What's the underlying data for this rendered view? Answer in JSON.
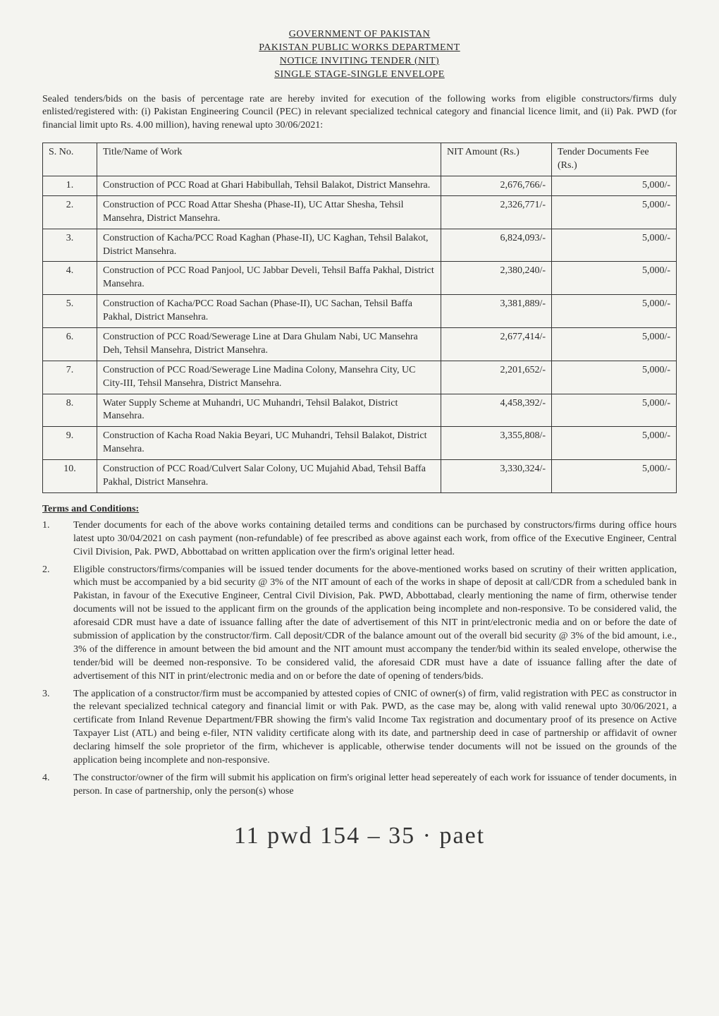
{
  "header": {
    "line1": "GOVERNMENT OF PAKISTAN",
    "line2": "PAKISTAN PUBLIC WORKS DEPARTMENT",
    "line3": "NOTICE INVITING TENDER (NIT)",
    "line4": "SINGLE STAGE-SINGLE ENVELOPE"
  },
  "intro": "Sealed tenders/bids on the basis of percentage rate are hereby invited for execution of the following works from eligible constructors/firms duly enlisted/registered with: (i) Pakistan Engineering Council (PEC) in relevant specialized technical category and financial licence limit, and (ii) Pak. PWD (for financial limit upto Rs. 4.00 million), having renewal upto 30/06/2021:",
  "table": {
    "columns": {
      "sno": "S. No.",
      "title": "Title/Name of Work",
      "amount": "NIT Amount (Rs.)",
      "fee": "Tender Documents Fee (Rs.)"
    },
    "rows": [
      {
        "sno": "1.",
        "title": "Construction of PCC Road at Ghari Habibullah, Tehsil Balakot, District Mansehra.",
        "amount": "2,676,766/-",
        "fee": "5,000/-"
      },
      {
        "sno": "2.",
        "title": "Construction of PCC Road Attar Shesha (Phase-II), UC Attar Shesha, Tehsil Mansehra, District Mansehra.",
        "amount": "2,326,771/-",
        "fee": "5,000/-"
      },
      {
        "sno": "3.",
        "title": "Construction of Kacha/PCC Road Kaghan (Phase-II), UC Kaghan, Tehsil Balakot, District Mansehra.",
        "amount": "6,824,093/-",
        "fee": "5,000/-"
      },
      {
        "sno": "4.",
        "title": "Construction of PCC Road Panjool, UC Jabbar Develi, Tehsil Baffa Pakhal, District Mansehra.",
        "amount": "2,380,240/-",
        "fee": "5,000/-"
      },
      {
        "sno": "5.",
        "title": "Construction of Kacha/PCC Road Sachan (Phase-II), UC Sachan, Tehsil Baffa Pakhal, District Mansehra.",
        "amount": "3,381,889/-",
        "fee": "5,000/-"
      },
      {
        "sno": "6.",
        "title": "Construction of PCC Road/Sewerage Line at Dara Ghulam Nabi, UC Mansehra Deh, Tehsil Mansehra, District Mansehra.",
        "amount": "2,677,414/-",
        "fee": "5,000/-"
      },
      {
        "sno": "7.",
        "title": "Construction of PCC Road/Sewerage Line Madina Colony, Mansehra City, UC City-III, Tehsil Mansehra, District Mansehra.",
        "amount": "2,201,652/-",
        "fee": "5,000/-"
      },
      {
        "sno": "8.",
        "title": "Water Supply Scheme at Muhandri, UC Muhandri, Tehsil Balakot, District Mansehra.",
        "amount": "4,458,392/-",
        "fee": "5,000/-"
      },
      {
        "sno": "9.",
        "title": "Construction of Kacha Road Nakia Beyari, UC Muhandri, Tehsil Balakot, District Mansehra.",
        "amount": "3,355,808/-",
        "fee": "5,000/-"
      },
      {
        "sno": "10.",
        "title": "Construction of PCC Road/Culvert Salar Colony, UC Mujahid Abad, Tehsil Baffa Pakhal, District Mansehra.",
        "amount": "3,330,324/-",
        "fee": "5,000/-"
      }
    ],
    "style": {
      "border_color": "#333333",
      "header_bg": "#ffffff",
      "row_bg": "#ffffff",
      "font_size_pt": 11,
      "col_align": {
        "sno": "center",
        "title": "left",
        "amount": "right",
        "fee": "right"
      }
    }
  },
  "terms": {
    "heading": "Terms and Conditions:",
    "items": [
      {
        "num": "1.",
        "text": "Tender documents for each of the above works containing detailed terms and conditions can be purchased by constructors/firms during office hours latest upto 30/04/2021 on cash payment (non-refundable) of fee prescribed as above against each work, from office of the Executive Engineer, Central Civil Division, Pak. PWD, Abbottabad on written application over the firm's original letter head."
      },
      {
        "num": "2.",
        "text": "Eligible constructors/firms/companies will be issued tender documents for the above-mentioned works based on scrutiny of their written application, which must be accompanied by a bid security @ 3% of the NIT amount of each of the works in shape of deposit at call/CDR from a scheduled bank in Pakistan, in favour of the Executive Engineer, Central Civil Division, Pak. PWD, Abbottabad, clearly mentioning the name of firm, otherwise tender documents will not be issued to the applicant firm on the grounds of the application being incomplete and non-responsive. To be considered valid, the aforesaid CDR must have a date of issuance falling after the date of advertisement of this NIT in print/electronic media and on or before the date of submission of application by the constructor/firm. Call deposit/CDR of the balance amount out of the overall bid security @ 3% of the bid amount, i.e., 3% of the difference in amount between the bid amount and the NIT amount must accompany the tender/bid within its sealed envelope, otherwise the tender/bid will be deemed non-responsive. To be considered valid, the aforesaid CDR must have a date of issuance falling after the date of advertisement of this NIT in print/electronic media and on or before the date of opening of tenders/bids."
      },
      {
        "num": "3.",
        "text": "The application of a constructor/firm must be accompanied by attested copies of CNIC of owner(s) of firm, valid registration with PEC as constructor in the relevant specialized technical category and financial limit or with Pak. PWD, as the case may be, along with valid renewal upto 30/06/2021, a certificate from Inland Revenue Department/FBR showing the firm's valid Income Tax registration and documentary proof of its presence on Active Taxpayer List (ATL) and being e-filer, NTN validity certificate along with its date, and partnership deed in case of partnership or affidavit of owner declaring himself the sole proprietor of the firm, whichever is applicable, otherwise tender documents will not be issued on the grounds of the application being incomplete and non-responsive."
      },
      {
        "num": "4.",
        "text": "The constructor/owner of the firm will submit his application on firm's original letter head sepereately of each work for issuance of tender documents, in person. In case of partnership, only the person(s) whose"
      }
    ]
  },
  "handwriting": "11  pwd  154 –  35 ·  paet",
  "colors": {
    "page_bg": "#f4f4f0",
    "text": "#2a2a2a",
    "border": "#333333"
  }
}
